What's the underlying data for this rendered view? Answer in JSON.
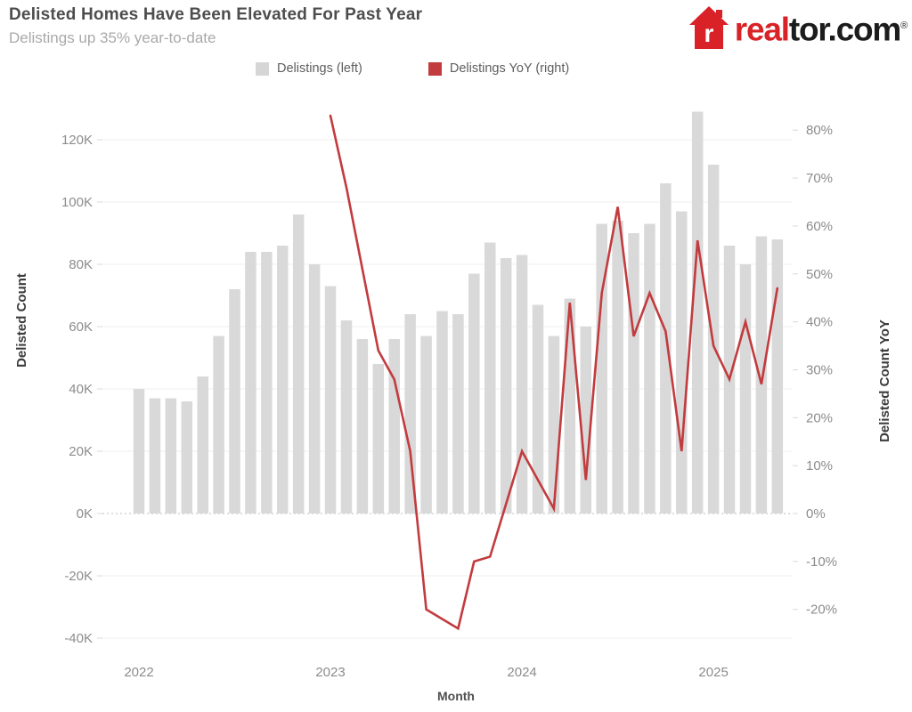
{
  "header": {
    "title": "Delisted Homes Have Been Elevated For Past Year",
    "subtitle": "Delistings up 35% year-to-date",
    "logo": {
      "house_letter": "r",
      "text_red": "real",
      "text_dark": "tor.com",
      "registered_mark": "®",
      "brand_red": "#d92228"
    }
  },
  "legend": {
    "items": [
      {
        "label": "Delistings (left)",
        "color": "#d6d6d6"
      },
      {
        "label": "Delistings YoY (right)",
        "color": "#c23b3e"
      }
    ]
  },
  "chart_data": {
    "type": "bar",
    "subtype": "dual-axis bar + line",
    "title": "Delisted Homes Have Been Elevated For Past Year",
    "xlabel": "Month",
    "months": [
      "2022-01",
      "2022-02",
      "2022-03",
      "2022-04",
      "2022-05",
      "2022-06",
      "2022-07",
      "2022-08",
      "2022-09",
      "2022-10",
      "2022-11",
      "2022-12",
      "2023-01",
      "2023-02",
      "2023-03",
      "2023-04",
      "2023-05",
      "2023-06",
      "2023-07",
      "2023-08",
      "2023-09",
      "2023-10",
      "2023-11",
      "2023-12",
      "2024-01",
      "2024-02",
      "2024-03",
      "2024-04",
      "2024-05",
      "2024-06",
      "2024-07",
      "2024-08",
      "2024-09",
      "2024-10",
      "2024-11",
      "2024-12",
      "2025-01",
      "2025-02",
      "2025-03",
      "2025-04",
      "2025-05"
    ],
    "series": [
      {
        "name": "Delistings (left)",
        "mark": "bar",
        "axis": "left",
        "unit": "thousands",
        "color": "#d9d9d9",
        "values": [
          40,
          37,
          37,
          36,
          44,
          57,
          72,
          84,
          84,
          86,
          96,
          80,
          73,
          62,
          56,
          48,
          56,
          64,
          57,
          65,
          64,
          77,
          87,
          82,
          83,
          67,
          57,
          69,
          60,
          93,
          94,
          90,
          93,
          106,
          97,
          129,
          112,
          86,
          80,
          89,
          88
        ]
      },
      {
        "name": "Delistings YoY (right)",
        "mark": "line",
        "axis": "right",
        "unit": "percent",
        "color": "#c23b3e",
        "start_month_index": 12,
        "values": [
          83,
          68,
          51,
          34,
          28,
          13,
          -20,
          -22,
          -24,
          -10,
          -9,
          2,
          13,
          7,
          1,
          44,
          7,
          46,
          64,
          37,
          46,
          38,
          13,
          57,
          35,
          28,
          40,
          27,
          47
        ]
      }
    ],
    "left_axis": {
      "title": "Delisted Count",
      "tick_labels": [
        "120K",
        "100K",
        "80K",
        "60K",
        "40K",
        "20K",
        "0K",
        "-20K",
        "-40K"
      ],
      "tick_values": [
        120,
        100,
        80,
        60,
        40,
        20,
        0,
        -20,
        -40
      ],
      "range": [
        -46,
        133
      ]
    },
    "right_axis": {
      "title": "Delisted Count YoY",
      "tick_labels": [
        "80%",
        "70%",
        "60%",
        "50%",
        "40%",
        "30%",
        "20%",
        "10%",
        "0%",
        "-10%",
        "-20%"
      ],
      "tick_values": [
        80,
        70,
        60,
        50,
        40,
        30,
        20,
        10,
        0,
        -10,
        -20
      ]
    },
    "x_axis": {
      "title": "Month",
      "tick_labels": [
        "2022",
        "2023",
        "2024",
        "2025"
      ],
      "tick_month_index": [
        0,
        12,
        24,
        36
      ]
    },
    "grid": "horizontal gridlines at left-axis ticks",
    "zero_line": "dashed",
    "legend_position": "top"
  }
}
